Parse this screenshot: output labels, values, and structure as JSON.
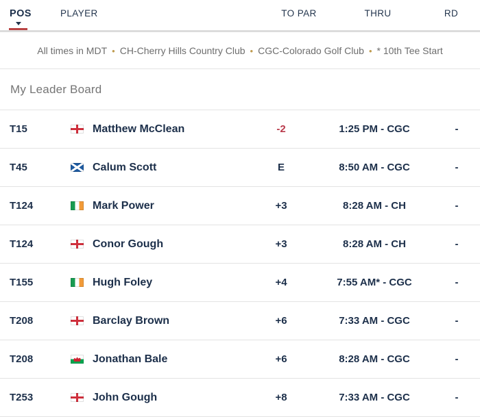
{
  "table": {
    "headers": {
      "pos": "POS",
      "player": "PLAYER",
      "to_par": "TO PAR",
      "thru": "THRU",
      "rd": "RD"
    },
    "sorted_by": "POS"
  },
  "notice": {
    "segments": [
      "All times in MDT",
      "CH-Cherry Hills Country Club",
      "CGC-Colorado Golf Club",
      "* 10th Tee Start"
    ]
  },
  "section": {
    "title": "My Leader Board"
  },
  "rows": [
    {
      "pos": "T15",
      "flag": "northern-ireland",
      "player": "Matthew McClean",
      "to_par": "-2",
      "to_par_state": "under",
      "thru": "1:25 PM - CGC",
      "rd": "-"
    },
    {
      "pos": "T45",
      "flag": "scotland",
      "player": "Calum Scott",
      "to_par": "E",
      "to_par_state": "even",
      "thru": "8:50 AM - CGC",
      "rd": "-"
    },
    {
      "pos": "T124",
      "flag": "ireland",
      "player": "Mark Power",
      "to_par": "+3",
      "to_par_state": "over",
      "thru": "8:28 AM - CH",
      "rd": "-"
    },
    {
      "pos": "T124",
      "flag": "england",
      "player": "Conor Gough",
      "to_par": "+3",
      "to_par_state": "over",
      "thru": "8:28 AM - CH",
      "rd": "-"
    },
    {
      "pos": "T155",
      "flag": "ireland",
      "player": "Hugh Foley",
      "to_par": "+4",
      "to_par_state": "over",
      "thru": "7:55 AM* - CGC",
      "rd": "-"
    },
    {
      "pos": "T208",
      "flag": "england",
      "player": "Barclay Brown",
      "to_par": "+6",
      "to_par_state": "over",
      "thru": "7:33 AM - CGC",
      "rd": "-"
    },
    {
      "pos": "T208",
      "flag": "wales",
      "player": "Jonathan Bale",
      "to_par": "+6",
      "to_par_state": "over",
      "thru": "8:28 AM - CGC",
      "rd": "-"
    },
    {
      "pos": "T253",
      "flag": "england",
      "player": "John Gough",
      "to_par": "+8",
      "to_par_state": "over",
      "thru": "7:33 AM - CGC",
      "rd": "-"
    }
  ],
  "colors": {
    "navy_text": "#1c2f4a",
    "under_par_red": "#b93a4b",
    "sort_underline_red": "#b94343",
    "notice_gray": "#6d6d6d",
    "bullet_gold": "#bf9b4f",
    "divider_gray": "#e3e3e3"
  }
}
